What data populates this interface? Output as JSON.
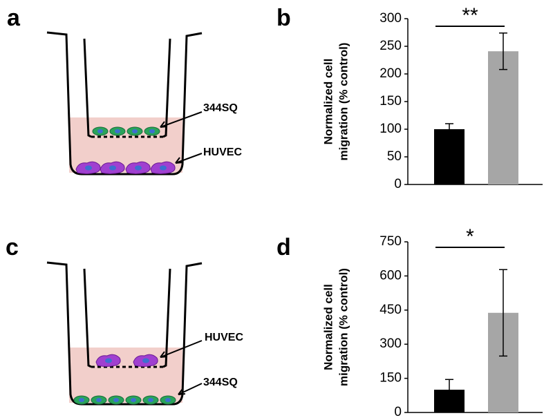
{
  "panels": [
    {
      "label": "a",
      "top_label": "344SQ",
      "bottom_label": "HUVEC"
    },
    {
      "label": "c",
      "top_label": "HUVEC",
      "bottom_label": "344SQ"
    }
  ],
  "chart_data": [
    {
      "type": "bar",
      "panel": "b",
      "ylabel": [
        "Normalized cell",
        "migration (% control)"
      ],
      "values": [
        100,
        241
      ],
      "errors": [
        10,
        33
      ],
      "colors": [
        "#000000",
        "#a6a6a6"
      ],
      "ylim": [
        0,
        300
      ],
      "yticks": [
        0,
        50,
        100,
        150,
        200,
        250,
        300
      ],
      "significance": "**"
    },
    {
      "type": "bar",
      "panel": "d",
      "ylabel": [
        "Normalized cell",
        "migration (% control)"
      ],
      "values": [
        100,
        438
      ],
      "errors": [
        45,
        190
      ],
      "colors": [
        "#000000",
        "#a6a6a6"
      ],
      "ylim": [
        0,
        750
      ],
      "yticks": [
        0,
        150,
        300,
        450,
        600,
        750
      ],
      "significance": "*"
    }
  ]
}
